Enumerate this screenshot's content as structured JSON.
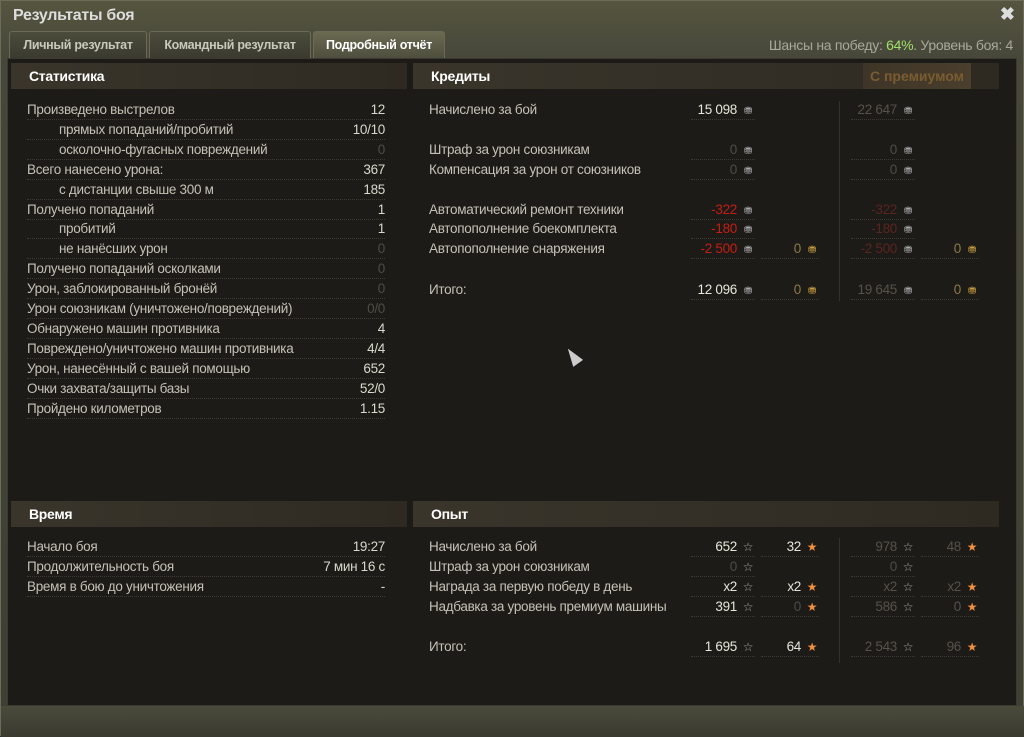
{
  "window": {
    "title": "Результаты боя",
    "close_icon": "close-icon"
  },
  "tabs": [
    {
      "label": "Личный результат"
    },
    {
      "label": "Командный результат"
    },
    {
      "label": "Подробный отчёт",
      "active": true
    }
  ],
  "battle_info": {
    "chances_label": "Шансы на победу: ",
    "chances_value": "64%",
    "level_text": ". Уровень боя: 4",
    "chances_color": "#9fe06a"
  },
  "stats": {
    "title": "Статистика",
    "rows": [
      {
        "label": "Произведено выстрелов",
        "value": "12"
      },
      {
        "label": "прямых попаданий/пробитий",
        "value": "10/10",
        "indent": true
      },
      {
        "label": "осколочно-фугасных повреждений",
        "value": "0",
        "indent": true,
        "dim": true
      },
      {
        "label": "Всего нанесено урона:",
        "value": "367"
      },
      {
        "label": "с дистанции свыше 300 м",
        "value": "185",
        "indent": true
      },
      {
        "label": "Получено попаданий",
        "value": "1"
      },
      {
        "label": "пробитий",
        "value": "1",
        "indent": true
      },
      {
        "label": "не нанёсших урон",
        "value": "0",
        "indent": true,
        "dim": true
      },
      {
        "label": "Получено попаданий осколками",
        "value": "0",
        "dim": true
      },
      {
        "label": "Урон, заблокированный бронёй",
        "value": "0",
        "dim": true
      },
      {
        "label": "Урон союзникам (уничтожено/повреждений)",
        "value": "0/0",
        "dim": true
      },
      {
        "label": "Обнаружено машин противника",
        "value": "4"
      },
      {
        "label": "Повреждено/уничтожено машин противника",
        "value": "4/4"
      },
      {
        "label": "Урон, нанесённый с вашей помощью",
        "value": "652"
      },
      {
        "label": "Очки захвата/защиты базы",
        "value": "52/0"
      },
      {
        "label": "Пройдено километров",
        "value": "1.15"
      }
    ]
  },
  "credits": {
    "title": "Кредиты",
    "premium_label": "С премиумом",
    "rows": [
      {
        "label": "Начислено за бой",
        "base": "15 098",
        "prem": "22 647"
      },
      {
        "label": "Штраф за урон союзникам",
        "base": "0",
        "prem": "0",
        "dim": true
      },
      {
        "label": "Компенсация за урон от союзников",
        "base": "0",
        "prem": "0",
        "dim": true
      },
      {
        "label": "Автоматический ремонт техники",
        "base": "-322",
        "prem": "-322",
        "red": true
      },
      {
        "label": "Автопополнение боекомплекта",
        "base": "-180",
        "prem": "-180",
        "red": true
      },
      {
        "label": "Автопополнение снаряжения",
        "base": "-2 500",
        "base_gold": "0",
        "prem": "-2 500",
        "prem_gold": "0",
        "red": true
      },
      {
        "label": "Итого:",
        "base": "12 096",
        "base_gold": "0",
        "prem": "19 645",
        "prem_gold": "0"
      }
    ]
  },
  "time": {
    "title": "Время",
    "rows": [
      {
        "label": "Начало боя",
        "value": "19:27"
      },
      {
        "label": "Продолжительность боя",
        "value": "7 мин 16 с"
      },
      {
        "label": "Время в бою до уничтожения",
        "value": "-"
      }
    ]
  },
  "experience": {
    "title": "Опыт",
    "rows": [
      {
        "label": "Начислено за бой",
        "base": "652",
        "free": "32",
        "prem": "978",
        "prem_free": "48"
      },
      {
        "label": "Штраф за урон союзникам",
        "base": "0",
        "prem": "0",
        "dim": true
      },
      {
        "label": "Награда за первую победу в день",
        "base": "x2",
        "free": "x2",
        "prem": "x2",
        "prem_free": "x2"
      },
      {
        "label": "Надбавка за уровень премиум машины",
        "base": "391",
        "free": "0",
        "prem": "586",
        "prem_free": "0",
        "free_dim": true
      },
      {
        "label": "Итого:",
        "base": "1 695",
        "free": "64",
        "prem": "2 543",
        "prem_free": "96"
      }
    ]
  }
}
